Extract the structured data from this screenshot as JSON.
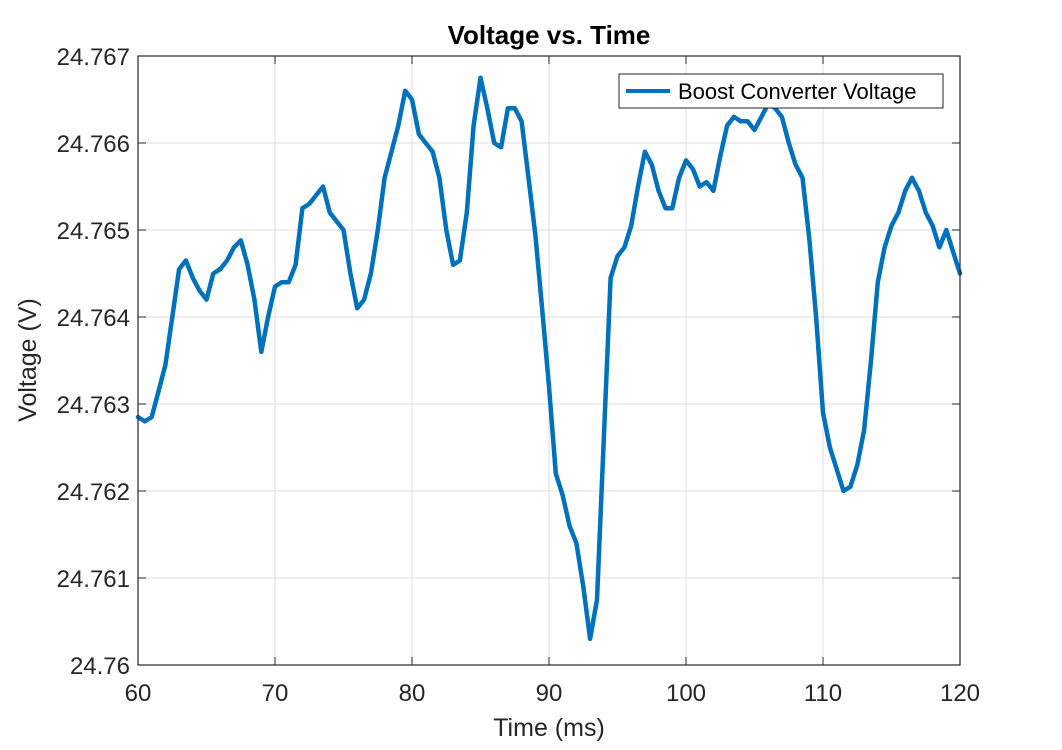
{
  "chart_data": {
    "type": "line",
    "title": "Voltage vs. Time",
    "xlabel": "Time (ms)",
    "ylabel": "Voltage (V)",
    "xlim": [
      60,
      120
    ],
    "ylim": [
      24.76,
      24.767
    ],
    "x_ticks": [
      "60",
      "70",
      "80",
      "90",
      "100",
      "110",
      "120"
    ],
    "y_ticks": [
      "24.76",
      "24.761",
      "24.762",
      "24.763",
      "24.764",
      "24.765",
      "24.766",
      "24.767"
    ],
    "grid": true,
    "legend_position": "top-right",
    "series": [
      {
        "name": "Boost Converter Voltage",
        "color": "#0072BD",
        "x": [
          60.0,
          60.5,
          61.0,
          61.5,
          62.0,
          62.5,
          63.0,
          63.5,
          64.0,
          64.5,
          65.0,
          65.5,
          66.0,
          66.5,
          67.0,
          67.5,
          68.0,
          68.5,
          69.0,
          69.5,
          70.0,
          70.5,
          71.0,
          71.5,
          72.0,
          72.5,
          73.0,
          73.5,
          74.0,
          74.5,
          75.0,
          75.5,
          76.0,
          76.5,
          77.0,
          77.5,
          78.0,
          78.5,
          79.0,
          79.5,
          80.0,
          80.5,
          81.0,
          81.5,
          82.0,
          82.5,
          83.0,
          83.5,
          84.0,
          84.5,
          85.0,
          85.5,
          86.0,
          86.5,
          87.0,
          87.5,
          88.0,
          88.5,
          89.0,
          89.5,
          90.0,
          90.5,
          91.0,
          91.5,
          92.0,
          92.5,
          93.0,
          93.5,
          94.0,
          94.5,
          95.0,
          95.5,
          96.0,
          96.5,
          97.0,
          97.5,
          98.0,
          98.5,
          99.0,
          99.5,
          100.0,
          100.5,
          101.0,
          101.5,
          102.0,
          102.5,
          103.0,
          103.5,
          104.0,
          104.5,
          105.0,
          105.5,
          106.0,
          106.5,
          107.0,
          107.5,
          108.0,
          108.5,
          109.0,
          109.5,
          110.0,
          110.5,
          111.0,
          111.5,
          112.0,
          112.5,
          113.0,
          113.5,
          114.0,
          114.5,
          115.0,
          115.5,
          116.0,
          116.5,
          117.0,
          117.5,
          118.0,
          118.5,
          119.0,
          119.5,
          120.0
        ],
        "y": [
          24.76285,
          24.7628,
          24.76285,
          24.76315,
          24.76345,
          24.764,
          24.76455,
          24.76465,
          24.76445,
          24.7643,
          24.7642,
          24.7645,
          24.76455,
          24.76465,
          24.7648,
          24.76488,
          24.7646,
          24.7642,
          24.7636,
          24.764,
          24.76435,
          24.7644,
          24.7644,
          24.7646,
          24.76525,
          24.7653,
          24.7654,
          24.7655,
          24.7652,
          24.7651,
          24.765,
          24.7645,
          24.7641,
          24.7642,
          24.7645,
          24.765,
          24.7656,
          24.7659,
          24.7662,
          24.7666,
          24.7665,
          24.7661,
          24.766,
          24.7659,
          24.7656,
          24.765,
          24.7646,
          24.76465,
          24.7652,
          24.7662,
          24.76675,
          24.7664,
          24.766,
          24.76595,
          24.7664,
          24.7664,
          24.76625,
          24.7656,
          24.76495,
          24.7641,
          24.7632,
          24.7622,
          24.76195,
          24.7616,
          24.7614,
          24.7609,
          24.7603,
          24.76075,
          24.7626,
          24.76445,
          24.7647,
          24.7648,
          24.76505,
          24.7655,
          24.7659,
          24.76575,
          24.76545,
          24.76525,
          24.76525,
          24.7656,
          24.7658,
          24.7657,
          24.7655,
          24.76555,
          24.76545,
          24.76585,
          24.7662,
          24.7663,
          24.76625,
          24.76625,
          24.76615,
          24.7663,
          24.76645,
          24.7664,
          24.7663,
          24.766,
          24.76575,
          24.7656,
          24.7649,
          24.764,
          24.7629,
          24.7625,
          24.76225,
          24.762,
          24.76205,
          24.7623,
          24.7627,
          24.7635,
          24.7644,
          24.7648,
          24.76505,
          24.7652,
          24.76545,
          24.7656,
          24.76545,
          24.7652,
          24.76505,
          24.7648,
          24.765,
          24.76475,
          24.7645
        ]
      }
    ]
  }
}
